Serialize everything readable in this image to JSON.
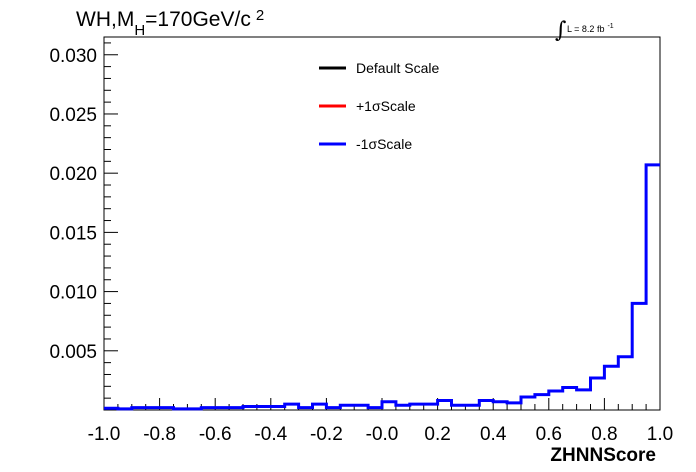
{
  "chart_data": {
    "type": "step",
    "title_prefix": "WH,M",
    "title_sub": "H",
    "title_suffix": "=170GeV/c",
    "title_sup": "2",
    "lumi": {
      "integral": "∫",
      "text": "L = 8.2 fb",
      "sup": "-1"
    },
    "xlabel": "ZHNNScore",
    "xlim": [
      -1.0,
      1.0
    ],
    "ylim": [
      0,
      0.0315
    ],
    "x_ticks": [
      "-1.0",
      "-0.8",
      "-0.6",
      "-0.4",
      "-0.2",
      "-0.0",
      "0.2",
      "0.4",
      "0.6",
      "0.8",
      "1.0"
    ],
    "y_ticks": [
      "0.005",
      "0.010",
      "0.015",
      "0.020",
      "0.025",
      "0.030"
    ],
    "legend": [
      {
        "label": "Default Scale",
        "color": "#000000"
      },
      {
        "label": "+1σScale",
        "color": "#ff0000"
      },
      {
        "label": "-1σScale",
        "color": "#0000ff"
      }
    ],
    "bins": 40,
    "series": [
      {
        "name": "-1σScale",
        "color": "#0000ff",
        "values": [
          0.00015,
          0.0001,
          0.0002,
          0.0002,
          0.0002,
          0.0001,
          0.0001,
          0.0002,
          0.0002,
          0.0002,
          0.0003,
          0.0003,
          0.0003,
          0.0005,
          0.0002,
          0.0005,
          0.0002,
          0.0004,
          0.0004,
          0.0002,
          0.0007,
          0.0004,
          0.0005,
          0.0005,
          0.0008,
          0.0004,
          0.0004,
          0.0008,
          0.0007,
          0.0006,
          0.0011,
          0.0013,
          0.0016,
          0.0019,
          0.0017,
          0.0027,
          0.0037,
          0.0045,
          0.009,
          0.0207
        ]
      }
    ]
  }
}
